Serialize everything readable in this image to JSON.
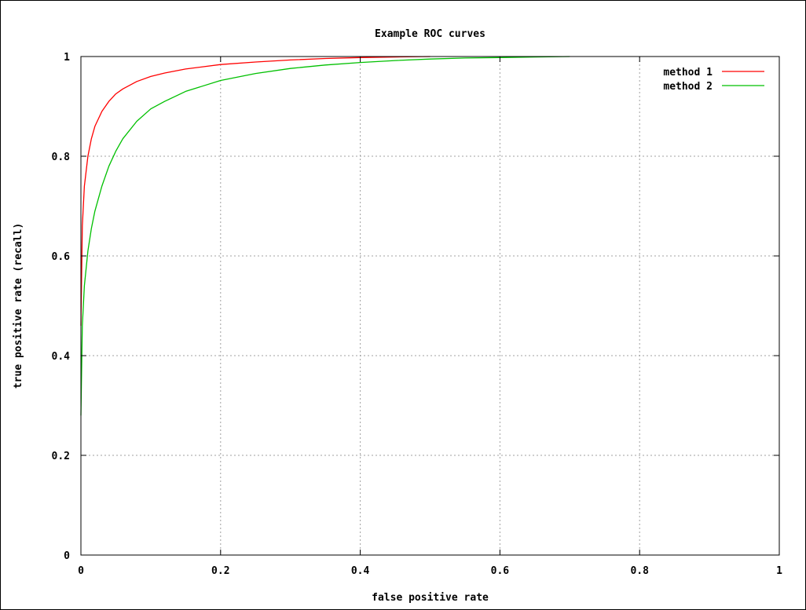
{
  "chart_data": {
    "type": "line",
    "title": "Example ROC curves",
    "xlabel": "false positive rate",
    "ylabel": "true positive rate (recall)",
    "xlim": [
      0,
      1
    ],
    "ylim": [
      0,
      1
    ],
    "xticks": [
      0,
      0.2,
      0.4,
      0.6,
      0.8,
      1
    ],
    "yticks": [
      0,
      0.2,
      0.4,
      0.6,
      0.8,
      1
    ],
    "xtick_labels": [
      "0",
      "0.2",
      "0.4",
      "0.6",
      "0.8",
      "1"
    ],
    "ytick_labels": [
      "0",
      "0.2",
      "0.4",
      "0.6",
      "0.8",
      "1"
    ],
    "grid": true,
    "legend_position": "top-right",
    "series": [
      {
        "name": "method 1",
        "color": "#ff0000",
        "x": [
          0,
          0.002,
          0.005,
          0.01,
          0.015,
          0.02,
          0.03,
          0.04,
          0.05,
          0.06,
          0.08,
          0.1,
          0.12,
          0.15,
          0.2,
          0.25,
          0.3,
          0.35,
          0.4,
          0.45,
          0.5
        ],
        "y": [
          0.46,
          0.66,
          0.74,
          0.8,
          0.835,
          0.86,
          0.89,
          0.91,
          0.925,
          0.935,
          0.95,
          0.96,
          0.967,
          0.975,
          0.984,
          0.989,
          0.993,
          0.996,
          0.998,
          0.999,
          1.0
        ]
      },
      {
        "name": "method 2",
        "color": "#00c000",
        "x": [
          0,
          0.002,
          0.005,
          0.01,
          0.015,
          0.02,
          0.03,
          0.04,
          0.05,
          0.06,
          0.08,
          0.1,
          0.12,
          0.15,
          0.2,
          0.25,
          0.3,
          0.35,
          0.4,
          0.45,
          0.5,
          0.55,
          0.6,
          0.65,
          0.7
        ],
        "y": [
          0.28,
          0.46,
          0.54,
          0.61,
          0.655,
          0.69,
          0.74,
          0.78,
          0.81,
          0.835,
          0.87,
          0.895,
          0.91,
          0.93,
          0.952,
          0.966,
          0.976,
          0.983,
          0.988,
          0.992,
          0.995,
          0.997,
          0.998,
          0.999,
          1.0
        ]
      }
    ]
  }
}
